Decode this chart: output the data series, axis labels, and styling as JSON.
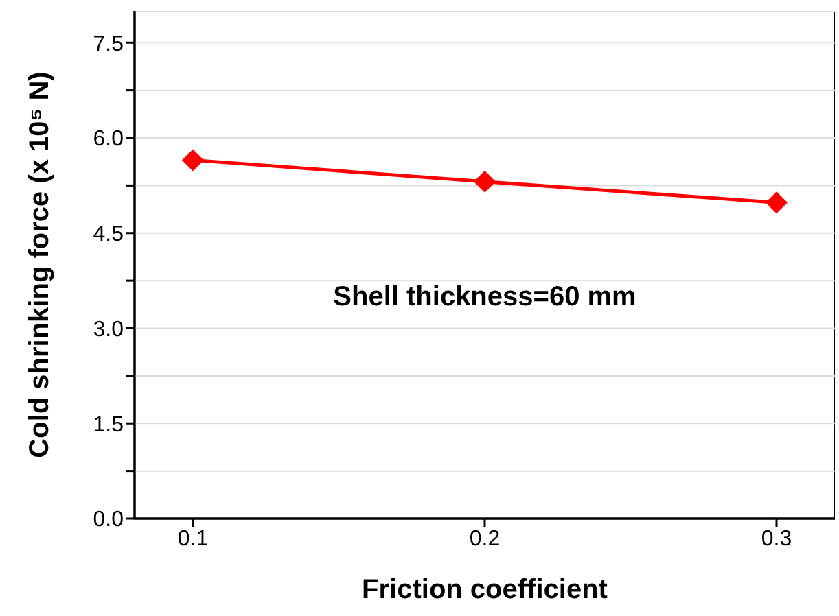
{
  "chart_data": {
    "type": "line",
    "xlabel": "Friction coefficient",
    "ylabel": "Cold shrinking force (x 10⁵ N)",
    "x": [
      0.1,
      0.2,
      0.3
    ],
    "series": [
      {
        "color": "#ff0000",
        "values": [
          5.65,
          5.31,
          4.98
        ]
      }
    ],
    "xlim": [
      0.08,
      0.32
    ],
    "xticks": [
      0.1,
      0.2,
      0.3
    ],
    "ylim": [
      0,
      8
    ],
    "yticks": [
      {
        "value": 0,
        "label": "0.0"
      },
      {
        "value": 0.75,
        "label": null
      },
      {
        "value": 1.5,
        "label": "1.5"
      },
      {
        "value": 2.25,
        "label": null
      },
      {
        "value": 3,
        "label": "3.0"
      },
      {
        "value": 3.75,
        "label": null
      },
      {
        "value": 4.5,
        "label": "4.5"
      },
      {
        "value": 5.25,
        "label": null
      },
      {
        "value": 6,
        "label": "6.0"
      },
      {
        "value": 6.75,
        "label": null
      },
      {
        "value": 7.5,
        "label": "7.5"
      }
    ],
    "grid": "y",
    "marker": "diamond",
    "line_style": "solid",
    "annotations": [
      "Shell thickness=60 mm"
    ]
  }
}
